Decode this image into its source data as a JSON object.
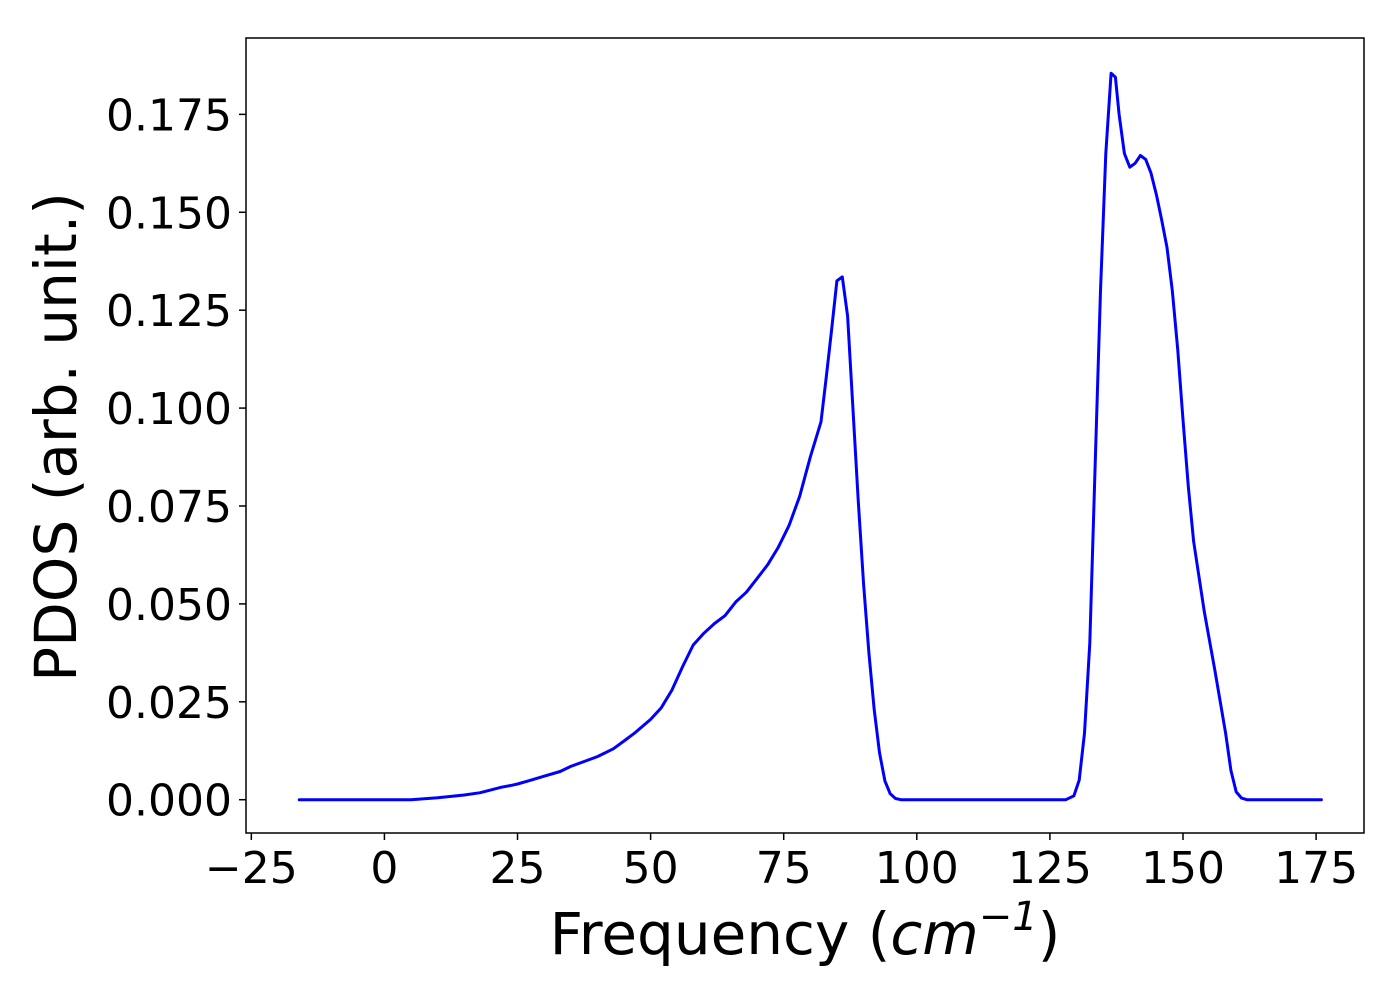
{
  "chart_data": {
    "type": "line",
    "title": "",
    "xlabel": "Frequency",
    "xlabel_unit_base": "cm",
    "xlabel_unit_exp": "−1",
    "ylabel": "PDOS (arb. unit.)",
    "xlim": [
      -26,
      184
    ],
    "ylim": [
      -0.0085,
      0.1945
    ],
    "x_ticks": [
      -25,
      0,
      25,
      50,
      75,
      100,
      125,
      150,
      175
    ],
    "x_tick_labels": [
      "−25",
      "0",
      "25",
      "50",
      "75",
      "100",
      "125",
      "150",
      "175"
    ],
    "y_ticks": [
      0.0,
      0.025,
      0.05,
      0.075,
      0.1,
      0.125,
      0.15,
      0.175
    ],
    "y_tick_labels": [
      "0.000",
      "0.025",
      "0.050",
      "0.075",
      "0.100",
      "0.125",
      "0.150",
      "0.175"
    ],
    "grid": false,
    "legend": "none",
    "series": [
      {
        "color": "#0000ff",
        "x": [
          -16,
          -10,
          -5,
          0,
          5,
          10,
          15,
          18,
          20,
          22,
          24,
          25,
          27,
          30,
          33,
          35,
          37,
          40,
          43,
          45,
          47,
          50,
          52,
          54,
          56,
          58,
          60,
          62,
          64,
          66,
          68,
          70,
          72,
          74,
          76,
          78,
          80,
          82,
          83,
          84,
          85,
          86,
          87,
          88,
          89,
          90,
          91,
          92,
          93,
          94,
          95,
          96,
          97,
          98,
          100,
          110,
          120,
          128,
          129.5,
          130.5,
          131.5,
          132.5,
          133.5,
          134.5,
          135.5,
          136.5,
          137.3,
          138,
          139,
          140,
          141,
          142,
          143,
          144,
          145,
          146,
          147,
          148,
          149,
          150,
          151,
          152,
          154,
          156,
          158,
          159,
          160,
          161,
          162,
          163,
          165,
          170,
          176
        ],
        "values": [
          0,
          0,
          0,
          0,
          0,
          0.0005,
          0.0012,
          0.0018,
          0.0025,
          0.0032,
          0.0037,
          0.004,
          0.0048,
          0.006,
          0.0072,
          0.0085,
          0.0095,
          0.011,
          0.013,
          0.015,
          0.017,
          0.0205,
          0.0235,
          0.028,
          0.034,
          0.0395,
          0.0425,
          0.045,
          0.047,
          0.0505,
          0.053,
          0.0565,
          0.06,
          0.0645,
          0.07,
          0.0775,
          0.0875,
          0.0965,
          0.108,
          0.12,
          0.1325,
          0.1335,
          0.1235,
          0.1,
          0.0765,
          0.055,
          0.0375,
          0.023,
          0.012,
          0.0048,
          0.0015,
          0.0003,
          0,
          0,
          0,
          0,
          0,
          0,
          0.001,
          0.005,
          0.017,
          0.04,
          0.085,
          0.13,
          0.165,
          0.1855,
          0.1845,
          0.175,
          0.165,
          0.1615,
          0.1625,
          0.1645,
          0.1635,
          0.16,
          0.1545,
          0.148,
          0.141,
          0.13,
          0.115,
          0.097,
          0.08,
          0.066,
          0.048,
          0.033,
          0.017,
          0.0075,
          0.002,
          0.0004,
          0,
          0,
          0,
          0,
          0
        ]
      }
    ]
  }
}
